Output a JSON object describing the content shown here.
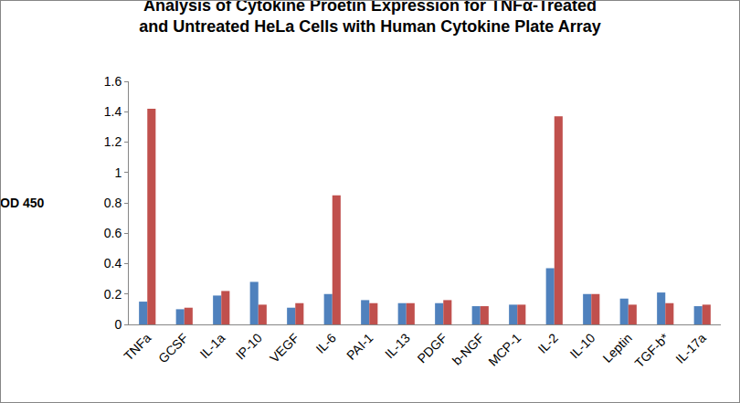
{
  "chart_data": {
    "type": "bar",
    "title": "Analysis of Cytokine Proetin Expression for TNFα-Treated and Untreated HeLa Cells with Human Cytokine Plate Array",
    "y_label": "OD 450",
    "categories": [
      "TNFa",
      "GCSF",
      "IL-1a",
      "IP-10",
      "VEGF",
      "IL-6",
      "PAI-1",
      "IL-13",
      "PDGF",
      "b-NGF",
      "MCP-1",
      "IL-2",
      "IL-10",
      "Leptin",
      "TGF-b*",
      "IL-17a"
    ],
    "series": [
      {
        "color": "#4F81BD",
        "values": [
          0.15,
          0.1,
          0.19,
          0.28,
          0.11,
          0.2,
          0.16,
          0.14,
          0.14,
          0.12,
          0.13,
          0.37,
          0.2,
          0.17,
          0.21,
          0.12
        ]
      },
      {
        "color": "#C0504D",
        "values": [
          1.42,
          0.11,
          0.22,
          0.13,
          0.14,
          0.85,
          0.14,
          0.14,
          0.16,
          0.12,
          0.13,
          1.37,
          0.2,
          0.13,
          0.14,
          0.13
        ]
      }
    ],
    "ylim": [
      0,
      1.6
    ],
    "yticks": [
      0,
      0.2,
      0.4,
      0.6,
      0.8,
      1,
      1.2,
      1.4,
      1.6
    ],
    "grid": false
  }
}
